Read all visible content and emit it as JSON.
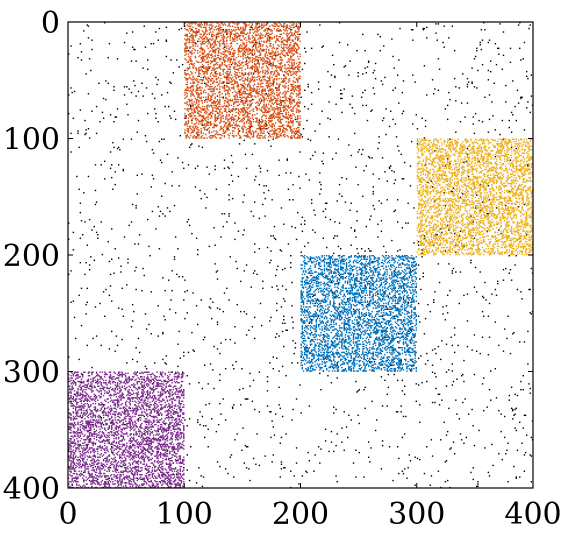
{
  "chart_data": {
    "type": "heatmap",
    "subtype": "sparsity-pattern",
    "title": "",
    "xlabel": "",
    "ylabel": "",
    "xlim": [
      0,
      400
    ],
    "ylim": [
      400,
      0
    ],
    "y_axis_inverted": true,
    "grid": false,
    "x_ticks": [
      0,
      100,
      200,
      300,
      400
    ],
    "y_ticks": [
      0,
      100,
      200,
      300,
      400
    ],
    "x_tick_labels": [
      "0",
      "100",
      "200",
      "300",
      "400"
    ],
    "y_tick_labels": [
      "0",
      "100",
      "200",
      "300",
      "400"
    ],
    "background_noise": {
      "color": "#000000",
      "density": 0.012,
      "range": [
        0,
        400
      ]
    },
    "blocks": [
      {
        "rows": [
          0,
          100
        ],
        "cols": [
          100,
          200
        ],
        "color": "#D95319",
        "density": 0.32
      },
      {
        "rows": [
          100,
          200
        ],
        "cols": [
          300,
          400
        ],
        "color": "#EDB120",
        "density": 0.32
      },
      {
        "rows": [
          200,
          300
        ],
        "cols": [
          200,
          300
        ],
        "color": "#0072BD",
        "density": 0.32
      },
      {
        "rows": [
          300,
          400
        ],
        "cols": [
          0,
          100
        ],
        "color": "#7E2F8E",
        "density": 0.32
      }
    ]
  }
}
